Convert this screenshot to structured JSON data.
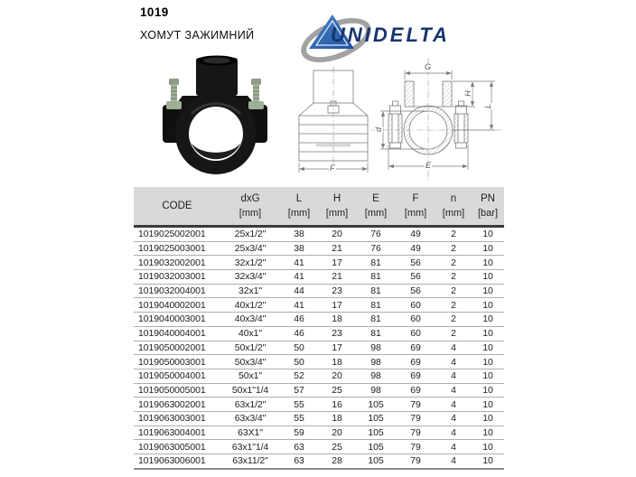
{
  "header": {
    "code_number": "1019",
    "product_name": "ХОМУТ ЗАЖИМНИЙ"
  },
  "logo": {
    "text": "UNIDELTA",
    "brand_navy": "#16356e",
    "triangle_blue": "#2a5da8",
    "swoosh_gray": "#a2a2a2"
  },
  "drawings": {
    "side_view": {
      "dim_f": "F"
    },
    "front_view": {
      "dim_g": "G",
      "dim_h": "H",
      "dim_l": "L",
      "dim_d": "d",
      "dim_e": "E"
    }
  },
  "table": {
    "header_bg": "#d9d9d9",
    "columns": [
      {
        "label": "CODE",
        "unit": ""
      },
      {
        "label": "dxG",
        "unit": "[mm]"
      },
      {
        "label": "L",
        "unit": "[mm]"
      },
      {
        "label": "H",
        "unit": "[mm]"
      },
      {
        "label": "E",
        "unit": "[mm]"
      },
      {
        "label": "F",
        "unit": "[mm]"
      },
      {
        "label": "n",
        "unit": "[mm]"
      },
      {
        "label": "PN",
        "unit": "[bar]"
      }
    ],
    "rows": [
      [
        "1019025002001",
        "25x1/2\"",
        "38",
        "20",
        "76",
        "49",
        "2",
        "10"
      ],
      [
        "1019025003001",
        "25x3/4\"",
        "38",
        "21",
        "76",
        "49",
        "2",
        "10"
      ],
      [
        "1019032002001",
        "32x1/2\"",
        "41",
        "17",
        "81",
        "56",
        "2",
        "10"
      ],
      [
        "1019032003001",
        "32x3/4\"",
        "41",
        "21",
        "81",
        "56",
        "2",
        "10"
      ],
      [
        "1019032004001",
        "32x1\"",
        "44",
        "23",
        "81",
        "56",
        "2",
        "10"
      ],
      [
        "1019040002001",
        "40x1/2\"",
        "41",
        "17",
        "81",
        "60",
        "2",
        "10"
      ],
      [
        "1019040003001",
        "40x3/4\"",
        "46",
        "18",
        "81",
        "60",
        "2",
        "10"
      ],
      [
        "1019040004001",
        "40x1\"",
        "46",
        "23",
        "81",
        "60",
        "2",
        "10"
      ],
      [
        "1019050002001",
        "50x1/2\"",
        "50",
        "17",
        "98",
        "69",
        "4",
        "10"
      ],
      [
        "1019050003001",
        "50x3/4\"",
        "50",
        "18",
        "98",
        "69",
        "4",
        "10"
      ],
      [
        "1019050004001",
        "50x1\"",
        "52",
        "20",
        "98",
        "69",
        "4",
        "10"
      ],
      [
        "1019050005001",
        "50x1\"1/4",
        "57",
        "25",
        "98",
        "69",
        "4",
        "10"
      ],
      [
        "1019063002001",
        "63x1/2\"",
        "55",
        "16",
        "105",
        "79",
        "4",
        "10"
      ],
      [
        "1019063003001",
        "63x3/4\"",
        "55",
        "18",
        "105",
        "79",
        "4",
        "10"
      ],
      [
        "1019063004001",
        "63X1\"",
        "59",
        "20",
        "105",
        "79",
        "4",
        "10"
      ],
      [
        "1019063005001",
        "63x1\"1/4",
        "63",
        "25",
        "105",
        "79",
        "4",
        "10"
      ],
      [
        "1019063006001",
        "63x11/2\"",
        "63",
        "28",
        "105",
        "79",
        "4",
        "10"
      ]
    ]
  }
}
